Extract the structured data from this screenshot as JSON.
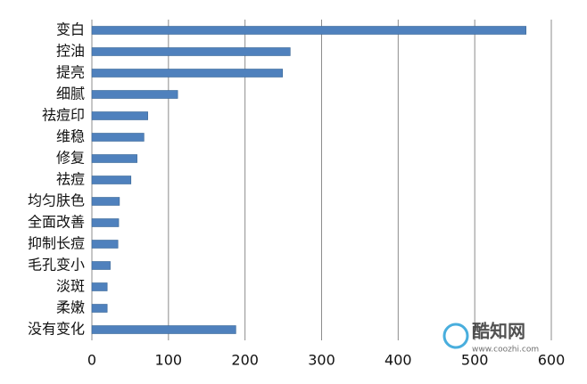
{
  "chart_data": {
    "type": "barh",
    "categories": [
      "变白",
      "控油",
      "提亮",
      "细腻",
      "祛痘印",
      "维稳",
      "修复",
      "祛痘",
      "均匀肤色",
      "全面改善",
      "抑制长痘",
      "毛孔变小",
      "淡斑",
      "柔嫩",
      "没有变化"
    ],
    "values": [
      567,
      259,
      249,
      112,
      73,
      68,
      59,
      51,
      36,
      35,
      34,
      24,
      20,
      20,
      188
    ],
    "color": "#4f81bd",
    "xlim": [
      0,
      600
    ],
    "xticks": [
      0,
      100,
      200,
      300,
      400,
      500,
      600
    ],
    "grid": true,
    "watermark": {
      "name": "酷知网",
      "url": "www.coozhi.com"
    }
  }
}
